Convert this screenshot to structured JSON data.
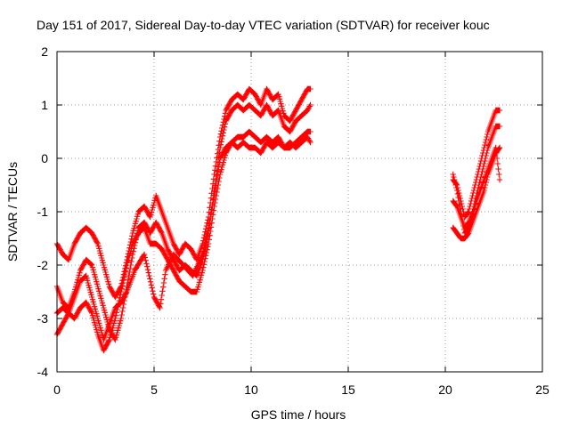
{
  "chart_data": {
    "type": "scatter",
    "title": "Day 151 of 2017, Sidereal Day-to-day VTEC variation (SDTVAR) for receiver kouc",
    "xlabel": "GPS time / hours",
    "ylabel": "SDTVAR / TECUs",
    "xlim": [
      0,
      25
    ],
    "ylim": [
      -4,
      2
    ],
    "xticks": [
      0,
      5,
      10,
      15,
      20,
      25
    ],
    "yticks": [
      -4,
      -3,
      -2,
      -1,
      0,
      1,
      2
    ],
    "grid": true,
    "marker": "+",
    "color": "#ff0000",
    "series": [
      {
        "segments": [
          {
            "points": [
              [
                0,
                -1.6
              ],
              [
                0.3,
                -1.8
              ],
              [
                0.6,
                -1.9
              ],
              [
                0.9,
                -1.6
              ],
              [
                1.2,
                -1.4
              ],
              [
                1.5,
                -1.3
              ],
              [
                1.8,
                -1.4
              ],
              [
                2.1,
                -1.6
              ],
              [
                2.4,
                -2.0
              ],
              [
                2.7,
                -2.4
              ],
              [
                3.0,
                -2.6
              ],
              [
                3.3,
                -2.4
              ],
              [
                3.6,
                -1.9
              ],
              [
                3.9,
                -1.4
              ],
              [
                4.2,
                -1.0
              ],
              [
                4.5,
                -0.9
              ],
              [
                4.8,
                -1.1
              ],
              [
                5.1,
                -0.7
              ],
              [
                5.4,
                -1.0
              ],
              [
                5.7,
                -1.3
              ],
              [
                6.0,
                -1.6
              ],
              [
                6.3,
                -1.8
              ],
              [
                6.6,
                -1.6
              ],
              [
                6.9,
                -1.7
              ],
              [
                7.2,
                -1.9
              ],
              [
                7.5,
                -1.6
              ],
              [
                7.8,
                -1.1
              ],
              [
                8.1,
                -0.3
              ],
              [
                8.4,
                0.4
              ],
              [
                8.7,
                0.9
              ],
              [
                9.0,
                1.1
              ],
              [
                9.3,
                1.2
              ],
              [
                9.6,
                1.1
              ],
              [
                9.9,
                1.3
              ],
              [
                10.2,
                1.2
              ],
              [
                10.5,
                1.0
              ],
              [
                10.8,
                1.3
              ],
              [
                11.1,
                1.1
              ],
              [
                11.4,
                1.2
              ],
              [
                11.7,
                0.8
              ],
              [
                12.0,
                0.7
              ],
              [
                12.3,
                0.9
              ],
              [
                12.6,
                1.1
              ],
              [
                12.9,
                1.3
              ],
              [
                13.05,
                1.3
              ]
            ]
          },
          {
            "points": [
              [
                20.4,
                -0.4
              ],
              [
                20.6,
                -0.5
              ],
              [
                20.8,
                -0.8
              ],
              [
                21.0,
                -1.1
              ],
              [
                21.2,
                -1.0
              ],
              [
                21.4,
                -0.7
              ],
              [
                21.6,
                -0.4
              ],
              [
                21.8,
                -0.1
              ],
              [
                22.0,
                0.2
              ],
              [
                22.2,
                0.5
              ],
              [
                22.4,
                0.7
              ],
              [
                22.6,
                0.9
              ],
              [
                22.8,
                0.9
              ]
            ]
          }
        ]
      },
      {
        "segments": [
          {
            "points": [
              [
                0,
                -2.4
              ],
              [
                0.3,
                -2.7
              ],
              [
                0.6,
                -2.8
              ],
              [
                0.9,
                -2.5
              ],
              [
                1.2,
                -2.1
              ],
              [
                1.5,
                -1.9
              ],
              [
                1.8,
                -2.0
              ],
              [
                2.1,
                -2.4
              ],
              [
                2.4,
                -2.8
              ],
              [
                2.7,
                -3.2
              ],
              [
                3.0,
                -3.4
              ],
              [
                3.3,
                -3.0
              ],
              [
                3.6,
                -2.4
              ],
              [
                3.9,
                -1.8
              ],
              [
                4.2,
                -1.3
              ],
              [
                4.5,
                -1.2
              ],
              [
                4.8,
                -1.4
              ],
              [
                5.1,
                -1.2
              ],
              [
                5.4,
                -1.4
              ],
              [
                5.7,
                -1.7
              ],
              [
                6.0,
                -1.9
              ],
              [
                6.3,
                -2.1
              ],
              [
                6.6,
                -2.0
              ],
              [
                6.9,
                -2.1
              ],
              [
                7.2,
                -2.2
              ],
              [
                7.5,
                -1.9
              ],
              [
                7.8,
                -1.4
              ],
              [
                8.1,
                -0.6
              ],
              [
                8.4,
                0.2
              ],
              [
                8.7,
                0.7
              ],
              [
                9.0,
                0.9
              ],
              [
                9.3,
                1.0
              ],
              [
                9.6,
                0.9
              ],
              [
                9.9,
                1.0
              ],
              [
                10.2,
                0.9
              ],
              [
                10.5,
                0.8
              ],
              [
                10.8,
                1.0
              ],
              [
                11.1,
                0.8
              ],
              [
                11.4,
                0.9
              ],
              [
                11.7,
                0.6
              ],
              [
                12.0,
                0.5
              ],
              [
                12.3,
                0.7
              ],
              [
                12.6,
                0.8
              ],
              [
                12.9,
                0.9
              ],
              [
                13.05,
                1.0
              ]
            ]
          },
          {
            "points": [
              [
                20.4,
                -0.8
              ],
              [
                20.6,
                -0.9
              ],
              [
                20.8,
                -1.1
              ],
              [
                21.0,
                -1.3
              ],
              [
                21.2,
                -1.2
              ],
              [
                21.4,
                -1.0
              ],
              [
                21.6,
                -0.7
              ],
              [
                21.8,
                -0.4
              ],
              [
                22.0,
                -0.1
              ],
              [
                22.2,
                0.2
              ],
              [
                22.4,
                0.4
              ],
              [
                22.6,
                0.6
              ],
              [
                22.8,
                0.6
              ]
            ]
          }
        ]
      },
      {
        "segments": [
          {
            "points": [
              [
                0,
                -2.9
              ],
              [
                0.3,
                -2.8
              ],
              [
                0.6,
                -2.9
              ],
              [
                0.9,
                -3.0
              ],
              [
                1.2,
                -2.8
              ],
              [
                1.5,
                -2.7
              ],
              [
                1.8,
                -2.9
              ],
              [
                2.1,
                -3.3
              ],
              [
                2.4,
                -3.6
              ],
              [
                2.7,
                -3.4
              ],
              [
                3.0,
                -3.0
              ],
              [
                3.3,
                -2.5
              ],
              [
                3.6,
                -2.0
              ],
              [
                3.9,
                -1.6
              ],
              [
                4.2,
                -1.4
              ],
              [
                4.5,
                -1.3
              ],
              [
                4.8,
                -1.6
              ],
              [
                5.1,
                -1.6
              ],
              [
                5.4,
                -1.7
              ],
              [
                5.7,
                -1.9
              ],
              [
                6.0,
                -2.1
              ],
              [
                6.3,
                -2.3
              ],
              [
                6.6,
                -2.4
              ],
              [
                6.9,
                -2.5
              ],
              [
                7.2,
                -2.5
              ],
              [
                7.5,
                -2.1
              ],
              [
                7.8,
                -1.6
              ],
              [
                8.1,
                -0.9
              ],
              [
                8.4,
                -0.3
              ],
              [
                8.7,
                0.1
              ],
              [
                9.0,
                0.3
              ],
              [
                9.3,
                0.4
              ],
              [
                9.6,
                0.4
              ],
              [
                9.9,
                0.5
              ],
              [
                10.2,
                0.4
              ],
              [
                10.5,
                0.3
              ],
              [
                10.8,
                0.4
              ],
              [
                11.1,
                0.3
              ],
              [
                11.4,
                0.4
              ],
              [
                11.7,
                0.2
              ],
              [
                12.0,
                0.2
              ],
              [
                12.3,
                0.3
              ],
              [
                12.6,
                0.4
              ],
              [
                12.9,
                0.5
              ],
              [
                13.05,
                0.5
              ]
            ]
          },
          {
            "points": [
              [
                20.4,
                -1.3
              ],
              [
                20.6,
                -1.4
              ],
              [
                20.8,
                -1.5
              ],
              [
                21.0,
                -1.5
              ],
              [
                21.2,
                -1.4
              ],
              [
                21.4,
                -1.2
              ],
              [
                21.6,
                -1.0
              ],
              [
                21.8,
                -0.8
              ],
              [
                22.0,
                -0.6
              ],
              [
                22.2,
                -0.3
              ],
              [
                22.4,
                -0.1
              ],
              [
                22.6,
                0.1
              ],
              [
                22.8,
                0.2
              ]
            ]
          }
        ]
      },
      {
        "segments": [
          {
            "points": [
              [
                0,
                -3.3
              ],
              [
                0.3,
                -3.1
              ],
              [
                0.6,
                -2.9
              ],
              [
                0.9,
                -2.6
              ],
              [
                1.2,
                -2.3
              ],
              [
                1.5,
                -2.2
              ],
              [
                1.8,
                -2.6
              ],
              [
                2.1,
                -3.0
              ],
              [
                2.4,
                -3.4
              ],
              [
                2.7,
                -3.1
              ],
              [
                3.0,
                -2.8
              ],
              [
                3.3,
                -2.7
              ],
              [
                3.6,
                -2.5
              ],
              [
                4.0,
                -2.1
              ],
              [
                4.5,
                -1.8
              ],
              [
                5.0,
                -2.6
              ],
              [
                5.3,
                -2.8
              ],
              [
                5.6,
                -2.1
              ],
              [
                6.0,
                -1.8
              ],
              [
                6.5,
                -2.0
              ],
              [
                7.0,
                -2.2
              ],
              [
                7.5,
                -1.8
              ],
              [
                7.8,
                -1.3
              ],
              [
                8.1,
                -0.7
              ],
              [
                8.4,
                0.0
              ],
              [
                8.7,
                0.2
              ],
              [
                9.0,
                0.3
              ],
              [
                9.3,
                0.2
              ],
              [
                9.6,
                0.3
              ],
              [
                9.9,
                0.2
              ],
              [
                10.2,
                0.2
              ],
              [
                10.5,
                0.1
              ],
              [
                10.8,
                0.3
              ],
              [
                11.1,
                0.2
              ],
              [
                11.4,
                0.3
              ],
              [
                11.7,
                0.2
              ],
              [
                12.0,
                0.3
              ],
              [
                12.3,
                0.2
              ],
              [
                12.6,
                0.3
              ],
              [
                12.9,
                0.4
              ],
              [
                13.05,
                0.3
              ]
            ]
          },
          {
            "points": [
              [
                20.4,
                -0.3
              ],
              [
                20.6,
                -0.6
              ],
              [
                20.8,
                -1.0
              ],
              [
                21.0,
                -1.4
              ],
              [
                21.2,
                -1.3
              ],
              [
                21.4,
                -1.1
              ],
              [
                21.6,
                -0.8
              ],
              [
                21.8,
                -0.6
              ],
              [
                22.0,
                -0.4
              ],
              [
                22.2,
                -0.2
              ],
              [
                22.4,
                0.0
              ],
              [
                22.6,
                0.2
              ],
              [
                22.8,
                -0.4
              ]
            ]
          }
        ]
      }
    ]
  }
}
